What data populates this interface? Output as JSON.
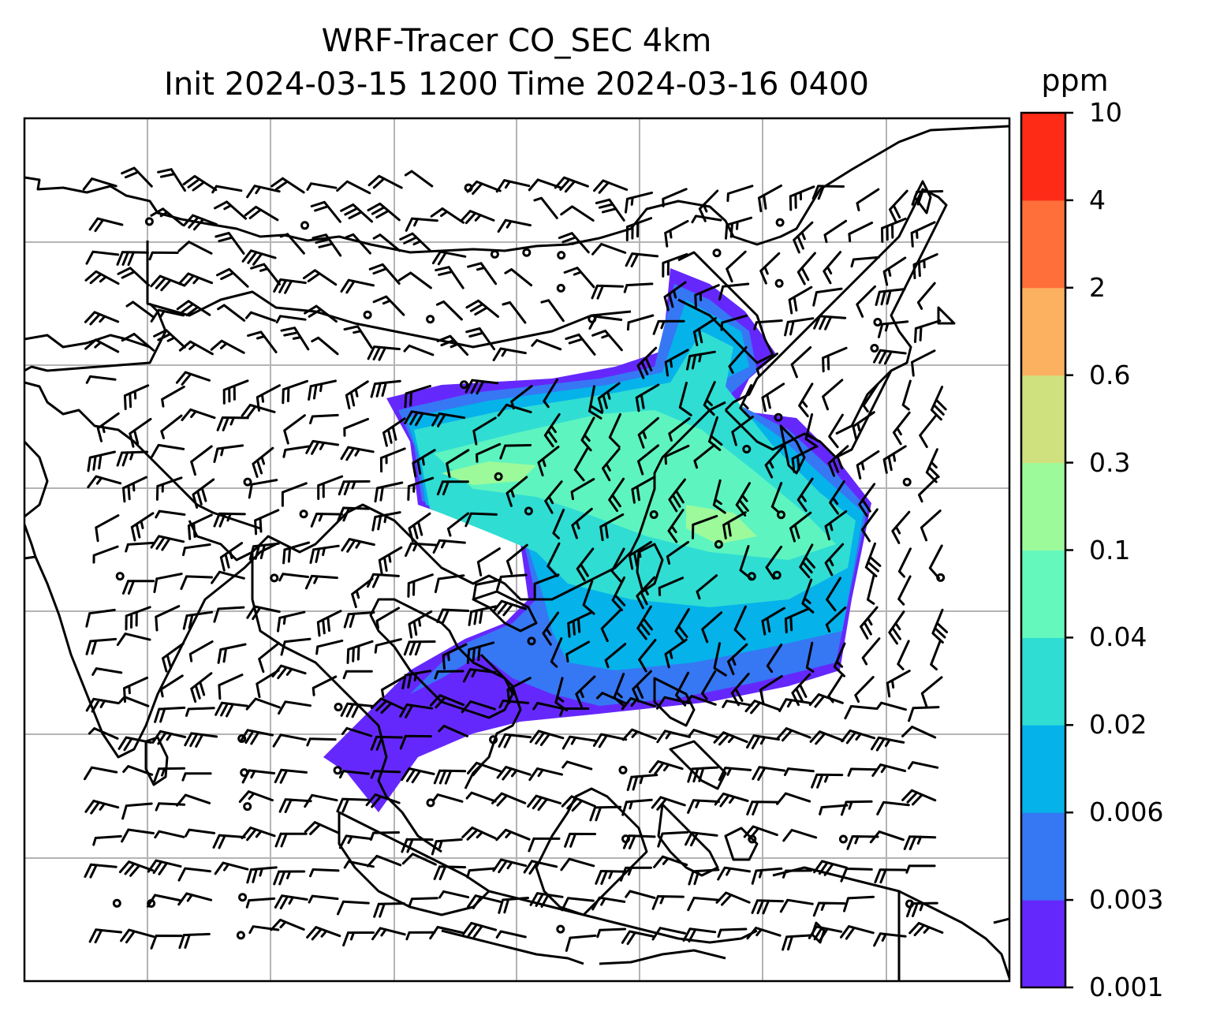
{
  "title": {
    "line1": "WRF-Tracer CO_SEC 4km",
    "line2": "Init 2024-03-15 1200 Time 2024-03-16 0400"
  },
  "colorbar": {
    "unit": "ppm",
    "levels": [
      "0.001",
      "0.003",
      "0.006",
      "0.02",
      "0.04",
      "0.1",
      "0.3",
      "0.6",
      "2",
      "4",
      "10"
    ],
    "colors": [
      "#6528fc",
      "#3677f4",
      "#05b2ea",
      "#2fddd3",
      "#65f8bc",
      "#9cfa9b",
      "#cfe07e",
      "#fcb160",
      "#ff6f39",
      "#fe2b17"
    ]
  },
  "map": {
    "gridlines": true,
    "coastline_color": "#000000",
    "grid_color": "#b4b4b4",
    "field": "CO_SEC tracer",
    "wind_barbs": true
  }
}
